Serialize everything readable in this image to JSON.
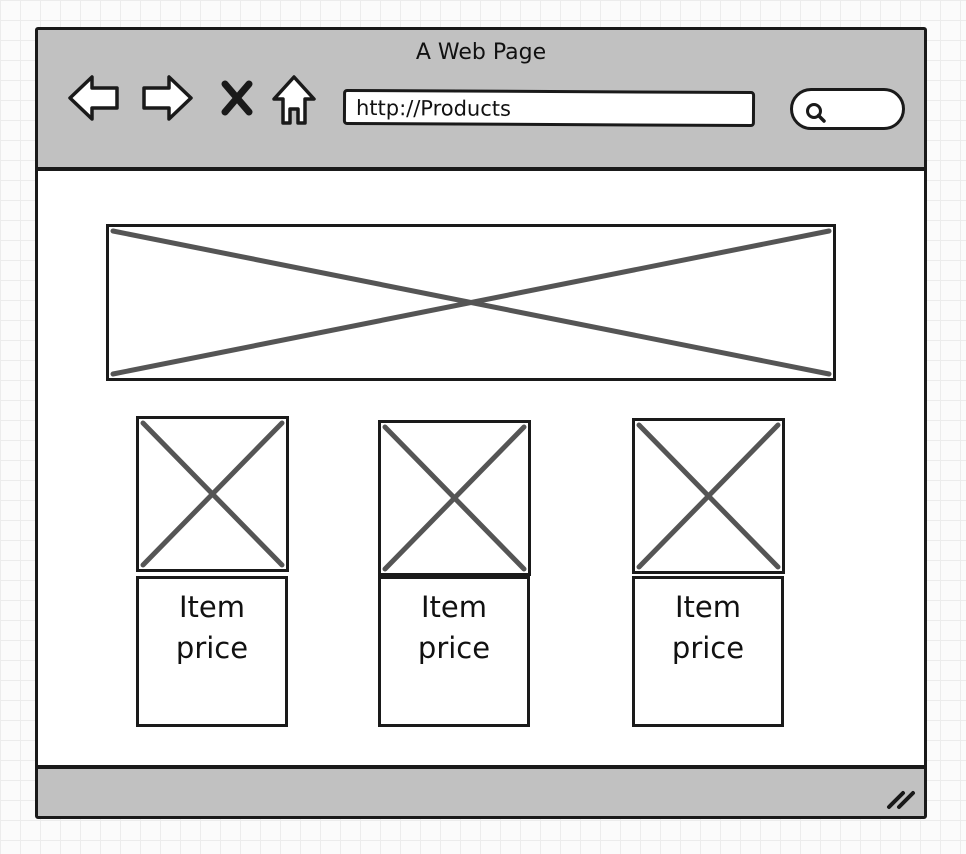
{
  "window": {
    "title": "A Web Page"
  },
  "toolbar": {
    "back_icon": "back-arrow-icon",
    "forward_icon": "forward-arrow-icon",
    "stop_icon": "close-icon",
    "home_icon": "home-icon"
  },
  "address_bar": {
    "value": "http://Products"
  },
  "search": {
    "icon": "search-icon",
    "value": ""
  },
  "hero": {
    "icon": "image-placeholder-icon"
  },
  "products": [
    {
      "name": "Item",
      "price": "price"
    },
    {
      "name": "Item",
      "price": "price"
    },
    {
      "name": "Item",
      "price": "price"
    }
  ],
  "colors": {
    "chrome": "#c1c1c1",
    "stroke": "#1a1a1a",
    "placeholder_x": "#555555"
  }
}
